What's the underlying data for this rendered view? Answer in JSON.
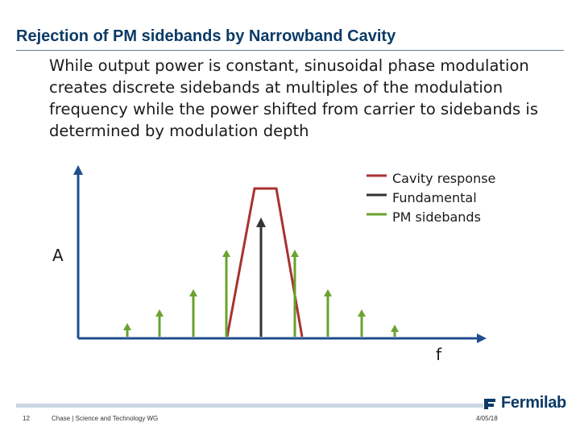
{
  "slide": {
    "title": "Rejection of PM sidebands by Narrowband Cavity",
    "body": "While output power is constant, sinusoidal phase modulation creates discrete sidebands at multiples of the modulation frequency while the power shifted from carrier to sidebands is determined by modulation depth"
  },
  "diagram": {
    "legend": [
      {
        "label": "Cavity response",
        "color": "#a83232"
      },
      {
        "label": "Fundamental",
        "color": "#333333"
      },
      {
        "label": "PM sidebands",
        "color": "#6aa22e"
      }
    ],
    "y_axis_label": "A",
    "x_axis_label": "f"
  },
  "footer": {
    "page_number": "12",
    "presenter": "Chase | Science and Technology WG",
    "date": "4/05/18",
    "logo_text": "Fermilab"
  }
}
